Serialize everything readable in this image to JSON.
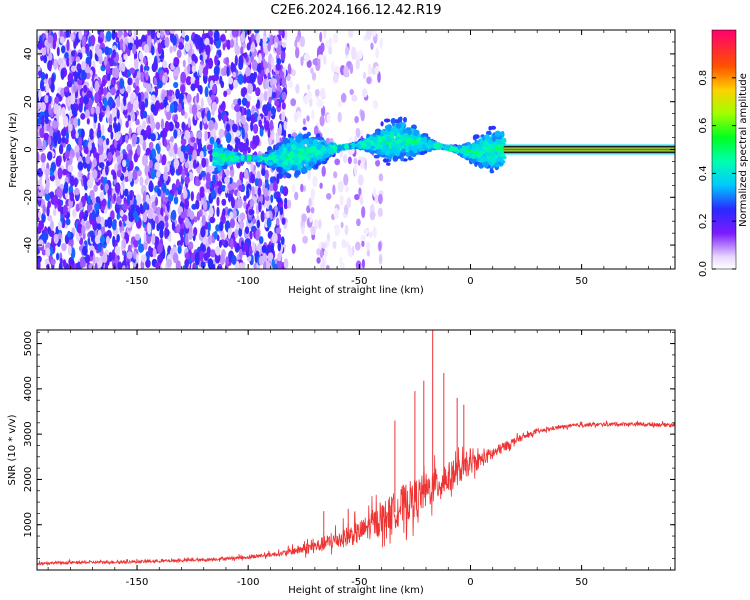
{
  "title": "C2E6.2024.166.12.42.R19",
  "chart_data": [
    {
      "type": "heatmap",
      "title": "C2E6.2024.166.12.42.R19",
      "xlabel": "Height of straight line (km)",
      "ylabel": "Frequency (Hz)",
      "xlim": [
        -195,
        92
      ],
      "ylim": [
        -50,
        50
      ],
      "x_ticks": [
        -150,
        -100,
        -50,
        0,
        50
      ],
      "y_ticks": [
        -40,
        -20,
        0,
        20,
        40
      ],
      "x_tick_labels": [
        "-150",
        "-100",
        "-50",
        "0",
        "50"
      ],
      "y_tick_labels": [
        "-40",
        "-20",
        "0",
        "20",
        "40"
      ],
      "colorbar": {
        "label": "Normalized spectral amplitude",
        "range": [
          0,
          1
        ],
        "ticks": [
          0.0,
          0.2,
          0.4,
          0.6,
          0.8
        ],
        "tick_labels": [
          "0.0",
          "0.2",
          "0.4",
          "0.6",
          "0.8"
        ]
      },
      "regions": [
        {
          "x_range": [
            -195,
            -83
          ],
          "freq_range": [
            -50,
            50
          ],
          "amplitude": [
            0.05,
            0.3
          ],
          "density": "high"
        },
        {
          "x_range": [
            -83,
            -40
          ],
          "freq_range": [
            -50,
            50
          ],
          "amplitude": [
            0.02,
            0.12
          ],
          "density": "sparse"
        },
        {
          "x_range": [
            -115,
            15
          ],
          "freq_center": [
            [
              -115,
              -3
            ],
            [
              -90,
              -4
            ],
            [
              -50,
              2
            ],
            [
              -30,
              4
            ],
            [
              0,
              -1
            ],
            [
              15,
              0
            ]
          ],
          "freq_halfwidth": 6,
          "amplitude": [
            0.2,
            0.5
          ],
          "density": "band"
        },
        {
          "x_range": [
            15,
            92
          ],
          "freq_center": 0,
          "amplitude": 0.92,
          "density": "line"
        }
      ]
    },
    {
      "type": "line",
      "title": "",
      "xlabel": "Height of straight line (km)",
      "ylabel": "SNR (10 * v/v)",
      "xlim": [
        -195,
        92
      ],
      "ylim": [
        0,
        5300
      ],
      "x_ticks": [
        -150,
        -100,
        -50,
        0,
        50
      ],
      "y_ticks": [
        1000,
        2000,
        3000,
        4000,
        5000
      ],
      "x_tick_labels": [
        "-150",
        "-100",
        "-50",
        "0",
        "50"
      ],
      "y_tick_labels": [
        "1000",
        "2000",
        "3000",
        "4000",
        "5000"
      ],
      "color": "#ee3333",
      "series_envelope": {
        "x": [
          -195,
          -150,
          -120,
          -100,
          -85,
          -70,
          -60,
          -50,
          -40,
          -30,
          -20,
          -10,
          0,
          10,
          20,
          30,
          40,
          50,
          70,
          92
        ],
        "y": [
          150,
          180,
          220,
          280,
          360,
          500,
          650,
          800,
          1100,
          1400,
          1700,
          2000,
          2300,
          2550,
          2850,
          3050,
          3150,
          3200,
          3220,
          3200
        ],
        "noise": [
          60,
          60,
          60,
          80,
          100,
          300,
          400,
          500,
          700,
          900,
          800,
          700,
          400,
          300,
          150,
          80,
          80,
          80,
          80,
          80
        ]
      },
      "spikes": [
        {
          "x": -17,
          "y": 5300
        },
        {
          "x": -12,
          "y": 4350
        },
        {
          "x": -21,
          "y": 4180
        },
        {
          "x": -25,
          "y": 3950
        },
        {
          "x": -6,
          "y": 3800
        },
        {
          "x": -34,
          "y": 3300
        },
        {
          "x": -3,
          "y": 3650
        },
        {
          "x": -55,
          "y": 1350
        },
        {
          "x": -66,
          "y": 1300
        }
      ]
    }
  ]
}
